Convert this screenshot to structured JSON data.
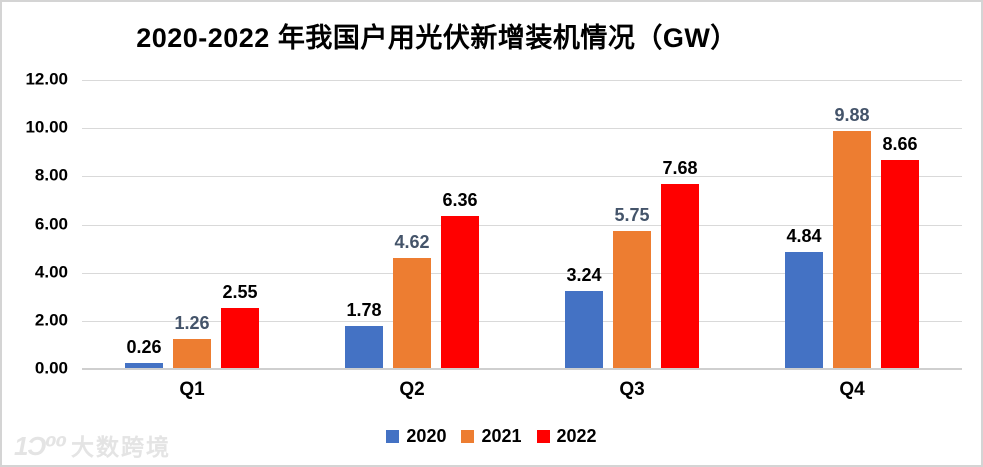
{
  "chart_data": {
    "type": "bar",
    "title": "2020-2022 年我国户用光伏新增装机情况（GW）",
    "categories": [
      "Q1",
      "Q2",
      "Q3",
      "Q4"
    ],
    "series": [
      {
        "name": "2020",
        "color": "#4472C4",
        "label_color": "#000000",
        "values": [
          0.26,
          1.78,
          3.24,
          4.84
        ]
      },
      {
        "name": "2021",
        "color": "#ED7D31",
        "label_color": "#44546A",
        "values": [
          1.26,
          4.62,
          5.75,
          9.88
        ]
      },
      {
        "name": "2022",
        "color": "#FF0000",
        "label_color": "#000000",
        "values": [
          2.55,
          6.36,
          7.68,
          8.66
        ]
      }
    ],
    "y_axis": {
      "min": 0,
      "max": 12,
      "tick_step": 2,
      "tick_labels": [
        "12.00",
        "10.00",
        "8.00",
        "6.00",
        "4.00",
        "2.00",
        "0.00"
      ]
    },
    "value_labels_decimals": 2,
    "grid": true,
    "legend_position": "bottom"
  },
  "colors": {
    "gridline": "#d9d9d9",
    "axis_line": "#cfcfcf",
    "frame_border": "#d4d4d4",
    "background": "#ffffff"
  },
  "watermark": {
    "logo": "1Ɔ⁰⁰",
    "text": "大数跨境"
  }
}
